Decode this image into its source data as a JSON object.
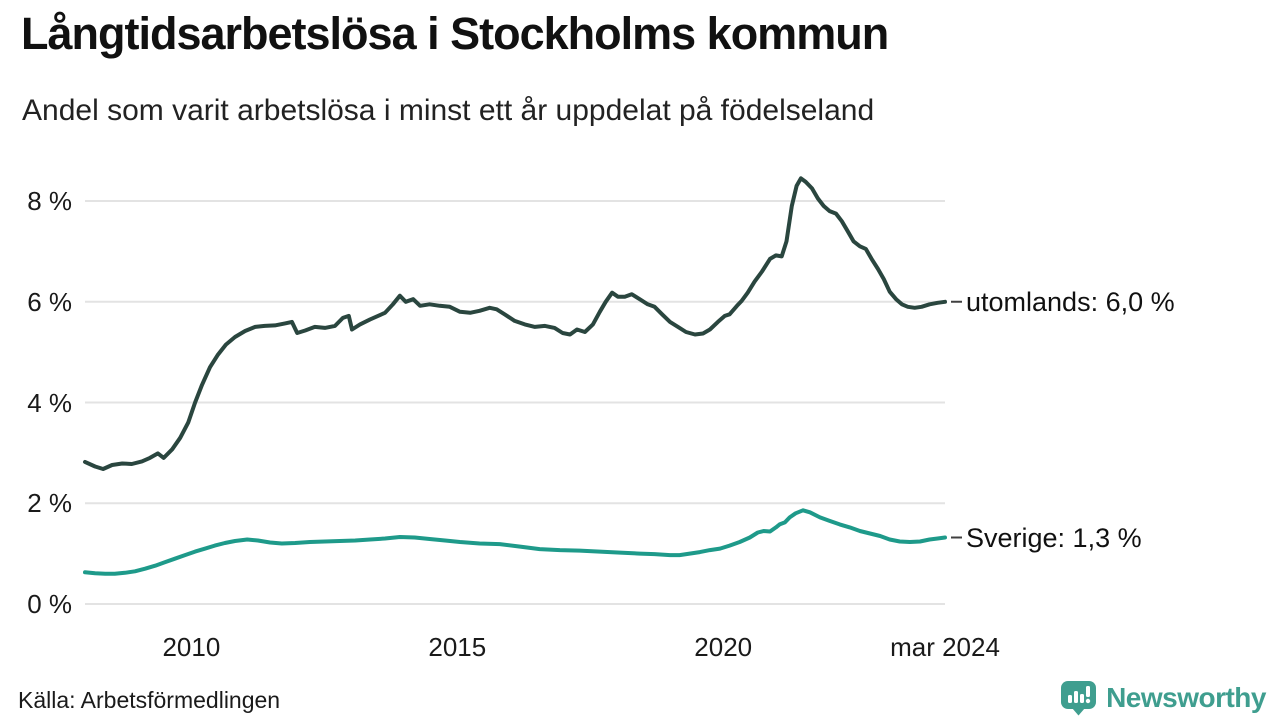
{
  "title": "Långtidsarbetslösa i Stockholms kommun",
  "subtitle": "Andel som varit arbetslösa i minst ett år uppdelat på födelseland",
  "source": "Källa: Arbetsförmedlingen",
  "branding": {
    "name": "Newsworthy",
    "color": "#3f9e8f",
    "icon": "bar-chart-pin-icon"
  },
  "colors": {
    "background": "#ffffff",
    "gridline": "#e3e3e3",
    "text": "#1a1a1a",
    "end_tick": "#404040"
  },
  "chart_data": {
    "type": "line",
    "title": "Långtidsarbetslösa i Stockholms kommun",
    "subtitle": "Andel som varit arbetslösa i minst ett år uppdelat på födelseland",
    "xlabel": "",
    "ylabel": "",
    "grid": true,
    "legend_position": "right-end-labels",
    "x_domain": [
      2008.0,
      2024.17
    ],
    "ylim": [
      0,
      8.6
    ],
    "y_ticks": [
      {
        "value": 0,
        "label": "0 %"
      },
      {
        "value": 2,
        "label": "2 %"
      },
      {
        "value": 4,
        "label": "4 %"
      },
      {
        "value": 6,
        "label": "6 %"
      },
      {
        "value": 8,
        "label": "8 %"
      }
    ],
    "x_ticks": [
      {
        "value": 2010,
        "label": "2010"
      },
      {
        "value": 2015,
        "label": "2015"
      },
      {
        "value": 2020,
        "label": "2020"
      },
      {
        "value": 2024.17,
        "label": "mar 2024"
      }
    ],
    "series": [
      {
        "name": "utomlands",
        "label": "utomlands: 6,0 %",
        "end_value": "6,0 %",
        "color": "#2a463f",
        "points": [
          [
            2008.0,
            2.82
          ],
          [
            2008.19,
            2.73
          ],
          [
            2008.34,
            2.68
          ],
          [
            2008.51,
            2.76
          ],
          [
            2008.7,
            2.79
          ],
          [
            2008.88,
            2.78
          ],
          [
            2009.07,
            2.83
          ],
          [
            2009.22,
            2.9
          ],
          [
            2009.37,
            2.99
          ],
          [
            2009.48,
            2.9
          ],
          [
            2009.64,
            3.07
          ],
          [
            2009.79,
            3.3
          ],
          [
            2009.94,
            3.6
          ],
          [
            2010.07,
            4.0
          ],
          [
            2010.2,
            4.35
          ],
          [
            2010.35,
            4.7
          ],
          [
            2010.5,
            4.95
          ],
          [
            2010.65,
            5.15
          ],
          [
            2010.82,
            5.3
          ],
          [
            2011.01,
            5.42
          ],
          [
            2011.2,
            5.5
          ],
          [
            2011.38,
            5.52
          ],
          [
            2011.57,
            5.53
          ],
          [
            2011.76,
            5.57
          ],
          [
            2011.89,
            5.6
          ],
          [
            2011.99,
            5.38
          ],
          [
            2012.14,
            5.43
          ],
          [
            2012.32,
            5.5
          ],
          [
            2012.51,
            5.48
          ],
          [
            2012.7,
            5.52
          ],
          [
            2012.85,
            5.68
          ],
          [
            2012.96,
            5.72
          ],
          [
            2013.02,
            5.45
          ],
          [
            2013.17,
            5.55
          ],
          [
            2013.36,
            5.65
          ],
          [
            2013.51,
            5.72
          ],
          [
            2013.64,
            5.78
          ],
          [
            2013.79,
            5.95
          ],
          [
            2013.92,
            6.12
          ],
          [
            2014.03,
            6.0
          ],
          [
            2014.17,
            6.05
          ],
          [
            2014.3,
            5.92
          ],
          [
            2014.48,
            5.95
          ],
          [
            2014.67,
            5.92
          ],
          [
            2014.86,
            5.9
          ],
          [
            2015.05,
            5.8
          ],
          [
            2015.24,
            5.78
          ],
          [
            2015.42,
            5.82
          ],
          [
            2015.61,
            5.88
          ],
          [
            2015.74,
            5.85
          ],
          [
            2015.89,
            5.75
          ],
          [
            2016.08,
            5.62
          ],
          [
            2016.27,
            5.55
          ],
          [
            2016.46,
            5.5
          ],
          [
            2016.65,
            5.52
          ],
          [
            2016.83,
            5.48
          ],
          [
            2016.98,
            5.38
          ],
          [
            2017.12,
            5.35
          ],
          [
            2017.25,
            5.45
          ],
          [
            2017.4,
            5.4
          ],
          [
            2017.55,
            5.55
          ],
          [
            2017.68,
            5.8
          ],
          [
            2017.79,
            6.0
          ],
          [
            2017.91,
            6.18
          ],
          [
            2018.02,
            6.1
          ],
          [
            2018.15,
            6.1
          ],
          [
            2018.28,
            6.15
          ],
          [
            2018.43,
            6.05
          ],
          [
            2018.58,
            5.95
          ],
          [
            2018.71,
            5.9
          ],
          [
            2018.85,
            5.75
          ],
          [
            2019.0,
            5.6
          ],
          [
            2019.15,
            5.5
          ],
          [
            2019.3,
            5.4
          ],
          [
            2019.47,
            5.35
          ],
          [
            2019.62,
            5.37
          ],
          [
            2019.75,
            5.45
          ],
          [
            2019.9,
            5.6
          ],
          [
            2020.03,
            5.72
          ],
          [
            2020.12,
            5.75
          ],
          [
            2020.26,
            5.92
          ],
          [
            2020.35,
            6.02
          ],
          [
            2020.46,
            6.18
          ],
          [
            2020.59,
            6.4
          ],
          [
            2020.73,
            6.6
          ],
          [
            2020.88,
            6.85
          ],
          [
            2020.99,
            6.92
          ],
          [
            2021.1,
            6.9
          ],
          [
            2021.19,
            7.2
          ],
          [
            2021.29,
            7.9
          ],
          [
            2021.38,
            8.3
          ],
          [
            2021.46,
            8.45
          ],
          [
            2021.55,
            8.38
          ],
          [
            2021.67,
            8.25
          ],
          [
            2021.78,
            8.05
          ],
          [
            2021.89,
            7.9
          ],
          [
            2022.0,
            7.8
          ],
          [
            2022.12,
            7.75
          ],
          [
            2022.23,
            7.6
          ],
          [
            2022.34,
            7.4
          ],
          [
            2022.45,
            7.2
          ],
          [
            2022.57,
            7.1
          ],
          [
            2022.68,
            7.05
          ],
          [
            2022.79,
            6.85
          ],
          [
            2022.91,
            6.65
          ],
          [
            2023.02,
            6.45
          ],
          [
            2023.13,
            6.2
          ],
          [
            2023.25,
            6.05
          ],
          [
            2023.36,
            5.95
          ],
          [
            2023.47,
            5.9
          ],
          [
            2023.6,
            5.88
          ],
          [
            2023.73,
            5.9
          ],
          [
            2023.88,
            5.95
          ],
          [
            2024.03,
            5.98
          ],
          [
            2024.17,
            6.0
          ]
        ]
      },
      {
        "name": "Sverige",
        "label": "Sverige: 1,3 %",
        "end_value": "1,3 %",
        "color": "#1e9a8a",
        "points": [
          [
            2008.0,
            0.63
          ],
          [
            2008.19,
            0.61
          ],
          [
            2008.38,
            0.6
          ],
          [
            2008.56,
            0.6
          ],
          [
            2008.75,
            0.62
          ],
          [
            2008.94,
            0.65
          ],
          [
            2009.13,
            0.7
          ],
          [
            2009.32,
            0.76
          ],
          [
            2009.5,
            0.83
          ],
          [
            2009.69,
            0.9
          ],
          [
            2009.88,
            0.97
          ],
          [
            2010.07,
            1.04
          ],
          [
            2010.26,
            1.1
          ],
          [
            2010.44,
            1.16
          ],
          [
            2010.63,
            1.21
          ],
          [
            2010.82,
            1.25
          ],
          [
            2011.05,
            1.28
          ],
          [
            2011.25,
            1.26
          ],
          [
            2011.48,
            1.22
          ],
          [
            2011.7,
            1.2
          ],
          [
            2011.95,
            1.21
          ],
          [
            2012.23,
            1.23
          ],
          [
            2012.51,
            1.24
          ],
          [
            2012.79,
            1.25
          ],
          [
            2013.08,
            1.26
          ],
          [
            2013.36,
            1.28
          ],
          [
            2013.64,
            1.3
          ],
          [
            2013.92,
            1.33
          ],
          [
            2014.2,
            1.32
          ],
          [
            2014.48,
            1.29
          ],
          [
            2014.77,
            1.26
          ],
          [
            2015.05,
            1.23
          ],
          [
            2015.42,
            1.2
          ],
          [
            2015.8,
            1.19
          ],
          [
            2016.18,
            1.14
          ],
          [
            2016.55,
            1.09
          ],
          [
            2016.93,
            1.07
          ],
          [
            2017.3,
            1.06
          ],
          [
            2017.68,
            1.04
          ],
          [
            2018.06,
            1.02
          ],
          [
            2018.43,
            1.0
          ],
          [
            2018.71,
            0.99
          ],
          [
            2019.0,
            0.97
          ],
          [
            2019.18,
            0.97
          ],
          [
            2019.37,
            1.0
          ],
          [
            2019.56,
            1.03
          ],
          [
            2019.75,
            1.07
          ],
          [
            2019.94,
            1.1
          ],
          [
            2020.12,
            1.16
          ],
          [
            2020.31,
            1.23
          ],
          [
            2020.5,
            1.32
          ],
          [
            2020.65,
            1.42
          ],
          [
            2020.76,
            1.45
          ],
          [
            2020.88,
            1.44
          ],
          [
            2020.99,
            1.52
          ],
          [
            2021.06,
            1.58
          ],
          [
            2021.16,
            1.62
          ],
          [
            2021.25,
            1.72
          ],
          [
            2021.36,
            1.8
          ],
          [
            2021.5,
            1.86
          ],
          [
            2021.63,
            1.82
          ],
          [
            2021.82,
            1.72
          ],
          [
            2022.0,
            1.65
          ],
          [
            2022.19,
            1.58
          ],
          [
            2022.38,
            1.52
          ],
          [
            2022.57,
            1.45
          ],
          [
            2022.76,
            1.4
          ],
          [
            2022.95,
            1.35
          ],
          [
            2023.13,
            1.28
          ],
          [
            2023.32,
            1.24
          ],
          [
            2023.51,
            1.23
          ],
          [
            2023.7,
            1.24
          ],
          [
            2023.88,
            1.28
          ],
          [
            2024.03,
            1.3
          ],
          [
            2024.17,
            1.32
          ]
        ]
      }
    ]
  }
}
